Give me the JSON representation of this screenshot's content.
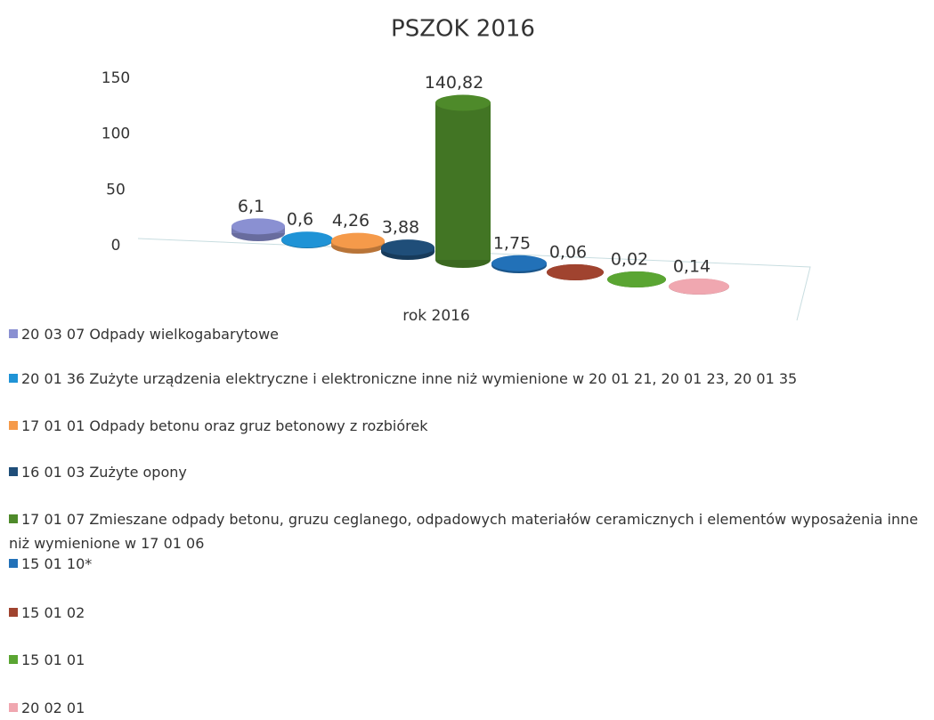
{
  "chart_data": {
    "type": "bar3d",
    "title": "PSZOK 2016",
    "categories": [
      "rok 2016"
    ],
    "ylim": [
      0,
      150
    ],
    "yticks": [
      0,
      50,
      100,
      150
    ],
    "series": [
      {
        "name": "20 03 07 Odpady wielkogabarytowe",
        "color": "#8a90d2",
        "values": [
          6.1
        ],
        "value_labels": [
          "6,1"
        ]
      },
      {
        "name": "20 01 36 Zużyte urządzenia elektryczne i elektroniczne inne niż wymienione w 20 01 21, 20 01 23, 20 01 35",
        "color": "#1f93d6",
        "values": [
          0.6
        ],
        "value_labels": [
          "0,6"
        ]
      },
      {
        "name": "17 01 01 Odpady betonu oraz gruz betonowy z rozbiórek",
        "color": "#f59a4a",
        "values": [
          4.26
        ],
        "value_labels": [
          "4,26"
        ]
      },
      {
        "name": "16 01 03 Zużyte opony",
        "color": "#1f4e79",
        "values": [
          3.88
        ],
        "value_labels": [
          "3,88"
        ]
      },
      {
        "name": "17 01 07 Zmieszane odpady betonu, gruzu ceglanego, odpadowych materiałów ceramicznych i elementów wyposażenia inne niż wymienione w 17 01 06",
        "color": "#4e8a2a",
        "values": [
          140.82
        ],
        "value_labels": [
          "140,82"
        ]
      },
      {
        "name": "15 01 10*",
        "color": "#2271b8",
        "values": [
          1.75
        ],
        "value_labels": [
          "1,75"
        ]
      },
      {
        "name": "15 01 02",
        "color": "#a0432f",
        "values": [
          0.06
        ],
        "value_labels": [
          "0,06"
        ]
      },
      {
        "name": "15 01 01",
        "color": "#5aa532",
        "values": [
          0.02
        ],
        "value_labels": [
          "0,02"
        ]
      },
      {
        "name": "20 02 01",
        "color": "#f0a7b0",
        "values": [
          0.14
        ],
        "value_labels": [
          "0,14"
        ]
      }
    ]
  }
}
